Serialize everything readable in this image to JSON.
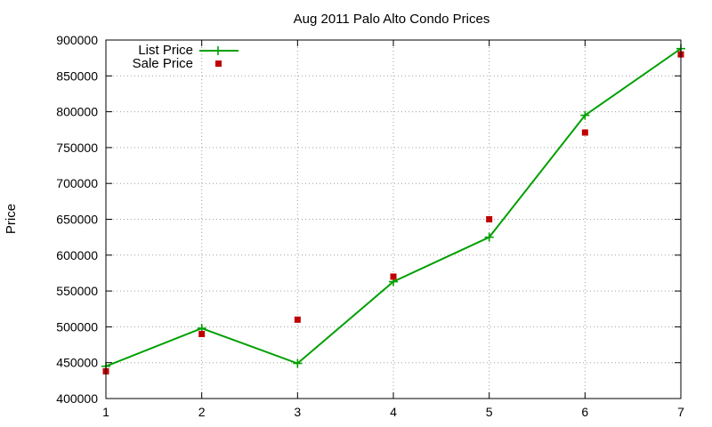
{
  "chart_data": {
    "type": "line",
    "title": "Aug 2011 Palo Alto Condo Prices",
    "xlabel": "",
    "ylabel": "Price",
    "x": [
      1,
      2,
      3,
      4,
      5,
      6,
      7
    ],
    "xlim": [
      1,
      7
    ],
    "ylim": [
      400000,
      900000
    ],
    "yticks": [
      400000,
      450000,
      500000,
      550000,
      600000,
      650000,
      700000,
      750000,
      800000,
      850000,
      900000
    ],
    "xticks": [
      1,
      2,
      3,
      4,
      5,
      6,
      7
    ],
    "grid": true,
    "legend_position": "top-left",
    "series": [
      {
        "name": "List Price",
        "style": "line+cross",
        "color": "#00a000",
        "values": [
          445000,
          498000,
          449000,
          563000,
          625000,
          795000,
          888000
        ]
      },
      {
        "name": "Sale Price",
        "style": "square-points",
        "color": "#c00000",
        "values": [
          438000,
          490000,
          510000,
          570000,
          650000,
          771000,
          880000
        ]
      }
    ]
  }
}
